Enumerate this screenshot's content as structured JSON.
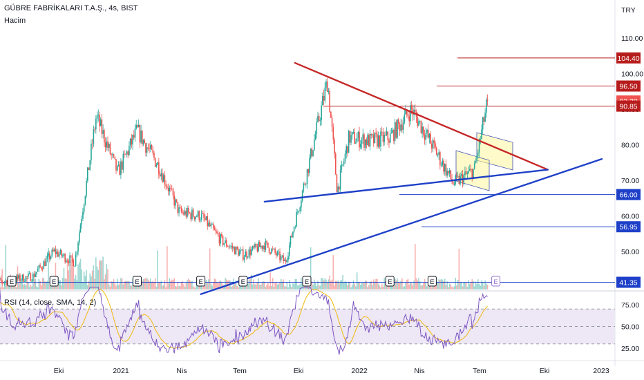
{
  "header": {
    "symbol_title": "GÜBRE FABRİKALARI T.A.Ş., 4s, BIST",
    "volume_label": "Hacim",
    "currency": "TRY"
  },
  "rsi": {
    "label": "RSI (14, close, SMA, 14, 2)",
    "levels": [
      70,
      50,
      30
    ],
    "axis_ticks": [
      "75.00",
      "50.00",
      "25.00"
    ]
  },
  "colors": {
    "up": "#26a69a",
    "down": "#ef5350",
    "resistance_line": "#c62828",
    "support_line": "#1e40c8",
    "rsi_line": "#7e57c2",
    "rsi_ma": "#f0b90b",
    "rsi_band": "#ede7f6",
    "channel_fill": "#fff59d",
    "earnings_marker": "#131722",
    "earnings_marker_future": "#9575cd"
  },
  "chart_data": {
    "type": "candlestick",
    "title": "GÜBRE FABRİKALARI T.A.Ş., 4s, BIST",
    "interval": "4s",
    "price_axis": {
      "ticks": [
        "110.00",
        "100.00",
        "90.00",
        "80.00",
        "70.00",
        "60.00",
        "50.00"
      ],
      "range": [
        40,
        117
      ]
    },
    "time_axis": {
      "ticks": [
        "Eki",
        "2021",
        "Nis",
        "Tem",
        "Eki",
        "2022",
        "Nis",
        "Tem",
        "Eki",
        "2023"
      ]
    },
    "price_series_overview": [
      {
        "date": "2020-08",
        "close": 41
      },
      {
        "date": "2020-10",
        "close": 43
      },
      {
        "date": "2020-11",
        "close": 50
      },
      {
        "date": "2020-12",
        "close": 47
      },
      {
        "date": "2021-01",
        "close": 88
      },
      {
        "date": "2021-02",
        "close": 72
      },
      {
        "date": "2021-03",
        "close": 84
      },
      {
        "date": "2021-04",
        "close": 74
      },
      {
        "date": "2021-05",
        "close": 61
      },
      {
        "date": "2021-06",
        "close": 60
      },
      {
        "date": "2021-07",
        "close": 53
      },
      {
        "date": "2021-08",
        "close": 49
      },
      {
        "date": "2021-09",
        "close": 52
      },
      {
        "date": "2021-10",
        "close": 47
      },
      {
        "date": "2021-11",
        "close": 72
      },
      {
        "date": "2021-12",
        "close": 98
      },
      {
        "date": "2021-12-15",
        "close": 67
      },
      {
        "date": "2022-01",
        "close": 82
      },
      {
        "date": "2022-02",
        "close": 81
      },
      {
        "date": "2022-03",
        "close": 82
      },
      {
        "date": "2022-04",
        "close": 90
      },
      {
        "date": "2022-05",
        "close": 80
      },
      {
        "date": "2022-06",
        "close": 69
      },
      {
        "date": "2022-07",
        "close": 73
      },
      {
        "date": "2022-07-20",
        "close": 92.3
      }
    ],
    "price_labels": [
      {
        "value": 104.4,
        "text": "104.40",
        "color": "#b71c1c"
      },
      {
        "value": 96.5,
        "text": "96.50",
        "color": "#b71c1c"
      },
      {
        "value": 92.3,
        "text": "92.30",
        "color": "#ef5350"
      },
      {
        "value": 90.85,
        "text": "90.85",
        "color": "#b71c1c"
      },
      {
        "value": 66.0,
        "text": "66.00",
        "color": "#1e40c8"
      },
      {
        "value": 56.95,
        "text": "56.95",
        "color": "#1e40c8"
      },
      {
        "value": 41.35,
        "text": "41.35",
        "color": "#1e40c8"
      }
    ],
    "horizontal_levels": [
      {
        "value": 104.4,
        "color": "#b71c1c"
      },
      {
        "value": 96.5,
        "color": "#b71c1c"
      },
      {
        "value": 90.85,
        "color": "#b71c1c"
      },
      {
        "value": 66.0,
        "color": "#1e40c8"
      },
      {
        "value": 56.95,
        "color": "#1e40c8"
      },
      {
        "value": 41.35,
        "color": "#1e40c8"
      }
    ],
    "trendlines": [
      {
        "kind": "resistance",
        "from": {
          "date": "2021-10-15",
          "price": 103
        },
        "to": {
          "date": "2022-10-15",
          "price": 73
        }
      },
      {
        "kind": "support",
        "from": {
          "date": "2021-09",
          "price": 64
        },
        "to": {
          "date": "2022-10-15",
          "price": 73
        }
      },
      {
        "kind": "support",
        "from": {
          "date": "2021-06",
          "price": 38
        },
        "to": {
          "date": "2023-01",
          "price": 76
        }
      }
    ],
    "earnings_markers": [
      {
        "label": "E",
        "date": "2020-09"
      },
      {
        "label": "E",
        "date": "2020-11"
      },
      {
        "label": "E",
        "date": "2021-03"
      },
      {
        "label": "E",
        "date": "2021-06"
      },
      {
        "label": "E",
        "date": "2021-08"
      },
      {
        "label": "E",
        "date": "2021-11"
      },
      {
        "label": "E",
        "date": "2022-03"
      },
      {
        "label": "E",
        "date": "2022-05"
      },
      {
        "label": "E",
        "date": "2022-08"
      }
    ]
  }
}
